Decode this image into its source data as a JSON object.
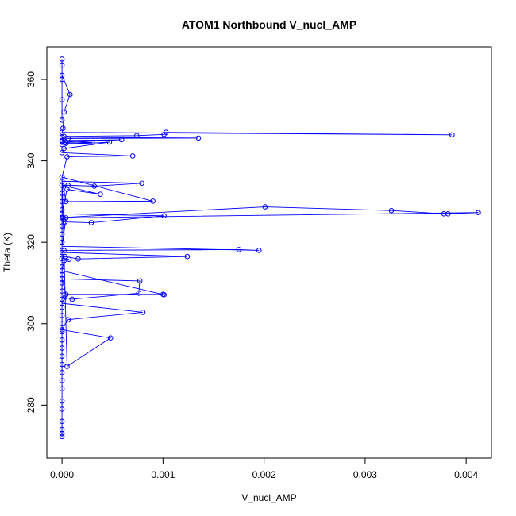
{
  "chart_data": {
    "type": "line",
    "title": "ATOM1 Northbound V_nucl_AMP",
    "xlabel": "V_nucl_AMP",
    "ylabel": "Theta (K)",
    "xlim": [
      -0.00015,
      0.00425
    ],
    "ylim": [
      267,
      368
    ],
    "x_ticks": [
      0.0,
      0.001,
      0.002,
      0.003,
      0.004
    ],
    "x_tick_labels": [
      "0.000",
      "0.001",
      "0.002",
      "0.003",
      "0.004"
    ],
    "y_ticks": [
      280,
      300,
      320,
      340,
      360
    ],
    "y_tick_labels": [
      "280",
      "300",
      "320",
      "340",
      "360"
    ],
    "grid": false,
    "series_color": "#0000ff",
    "series": [
      {
        "x": [
          0,
          0,
          0,
          0,
          0,
          0,
          0,
          0,
          0,
          0,
          0,
          0,
          0,
          0,
          0,
          0,
          0,
          0,
          0,
          0,
          0,
          0,
          0,
          0,
          0,
          0,
          0,
          0,
          0,
          0,
          0,
          0,
          0,
          5e-05,
          0.00048,
          0,
          6e-05,
          0.0008,
          0,
          3e-05,
          0.0001,
          0.00076,
          0.00077,
          0,
          4e-05,
          0.001,
          0.00101,
          0,
          2e-05,
          7e-05,
          0,
          3e-05,
          0.00016,
          0.00124,
          0,
          2e-05,
          0.00175,
          0.00195,
          0,
          4e-05,
          1e-05,
          0.00201,
          0.00326,
          0.00378,
          0.00382,
          0.00412,
          0,
          3e-05,
          0.00029,
          0.00101,
          0,
          5e-05,
          0.00038,
          0,
          6e-05,
          0.00032,
          0.00079,
          0,
          4e-05,
          0.0009,
          0,
          5e-05,
          0.0007,
          0,
          2e-05,
          0.00047,
          0,
          3e-05,
          0.00059,
          0,
          6e-05,
          0.00135,
          0,
          4e-05,
          0.0003,
          0,
          2e-05,
          0.00074,
          0.00101,
          0.00103,
          0.00386,
          0,
          1e-05,
          2e-05,
          8e-05,
          0,
          0,
          0,
          0,
          0,
          0
        ],
        "y": [
          272.3,
          273,
          274,
          276,
          279,
          281,
          284,
          286,
          288,
          290,
          292,
          294,
          296,
          298,
          300,
          302,
          304,
          306,
          308,
          310,
          312,
          314,
          316,
          318,
          320,
          322,
          324,
          326,
          328,
          330,
          332,
          334,
          336,
          289.5,
          296.5,
          298.5,
          301,
          302.8,
          305,
          306.5,
          306,
          307.5,
          310.5,
          311,
          307.2,
          307.2,
          307.1,
          313,
          315.5,
          315.8,
          316,
          316.5,
          315.9,
          316.5,
          317.5,
          318,
          318.2,
          318,
          319,
          326,
          326.1,
          328.7,
          327.8,
          327,
          327,
          327.3,
          326,
          325,
          324.8,
          326.5,
          327,
          333,
          331.8,
          334,
          334,
          333.8,
          334.5,
          335,
          330,
          330.1,
          336,
          341,
          341.2,
          342,
          343,
          344.6,
          344,
          344.5,
          345.2,
          345,
          345.5,
          345.6,
          345.8,
          344.3,
          344.5,
          344.8,
          346,
          346.2,
          346.5,
          347,
          346.4,
          347,
          348,
          352,
          356.3,
          361,
          363.5,
          365,
          360,
          355,
          350
        ]
      }
    ]
  }
}
